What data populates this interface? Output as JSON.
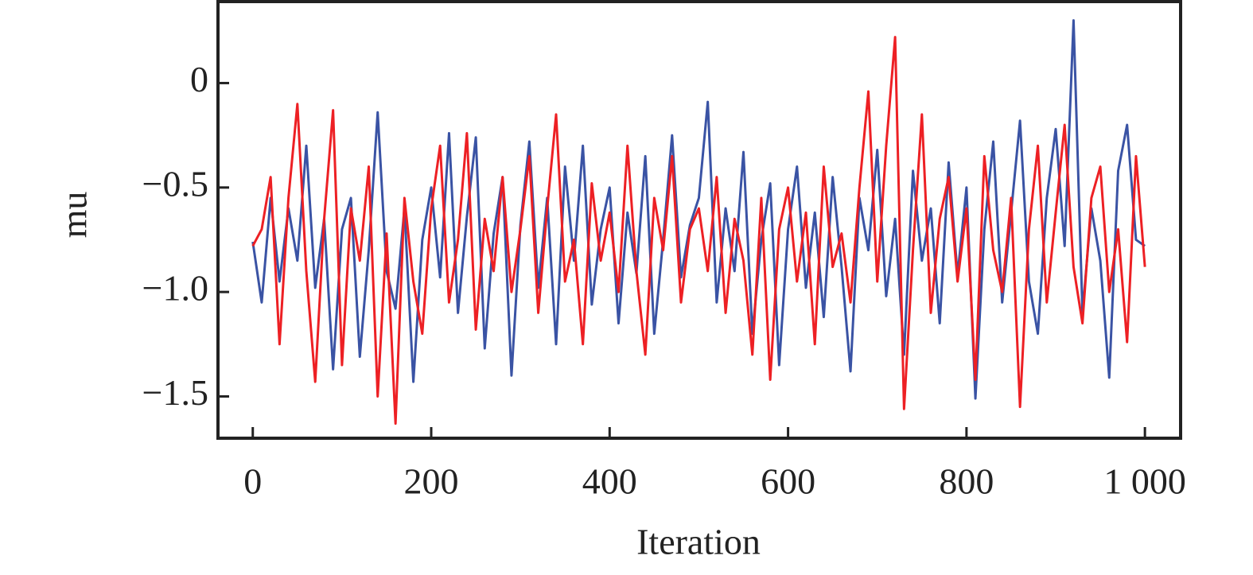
{
  "chart_data": {
    "type": "line",
    "xlabel": "Iteration",
    "ylabel": "mu",
    "x": [
      0,
      10,
      20,
      30,
      40,
      50,
      60,
      70,
      80,
      90,
      100,
      110,
      120,
      130,
      140,
      150,
      160,
      170,
      180,
      190,
      200,
      210,
      220,
      230,
      240,
      250,
      260,
      270,
      280,
      290,
      300,
      310,
      320,
      330,
      340,
      350,
      360,
      370,
      380,
      390,
      400,
      410,
      420,
      430,
      440,
      450,
      460,
      470,
      480,
      490,
      500,
      510,
      520,
      530,
      540,
      550,
      560,
      570,
      580,
      590,
      600,
      610,
      620,
      630,
      640,
      650,
      660,
      670,
      680,
      690,
      700,
      710,
      720,
      730,
      740,
      750,
      760,
      770,
      780,
      790,
      800,
      810,
      820,
      830,
      840,
      850,
      860,
      870,
      880,
      890,
      900,
      910,
      920,
      930,
      940,
      950,
      960,
      970,
      980,
      990,
      1000
    ],
    "series": [
      {
        "color": "#3a53a4",
        "values": [
          -0.76,
          -1.05,
          -0.55,
          -0.95,
          -0.6,
          -0.85,
          -0.3,
          -0.98,
          -0.65,
          -1.37,
          -0.7,
          -0.55,
          -1.31,
          -0.8,
          -0.14,
          -0.9,
          -1.08,
          -0.6,
          -1.43,
          -0.75,
          -0.5,
          -0.93,
          -0.24,
          -1.1,
          -0.64,
          -0.26,
          -1.27,
          -0.72,
          -0.45,
          -1.4,
          -0.68,
          -0.28,
          -0.98,
          -0.55,
          -1.25,
          -0.4,
          -0.85,
          -0.3,
          -1.06,
          -0.7,
          -0.5,
          -1.15,
          -0.62,
          -0.91,
          -0.35,
          -1.2,
          -0.75,
          -0.25,
          -0.93,
          -0.68,
          -0.55,
          -0.09,
          -1.05,
          -0.6,
          -0.9,
          -0.33,
          -1.2,
          -0.75,
          -0.48,
          -1.35,
          -0.7,
          -0.4,
          -0.98,
          -0.62,
          -1.12,
          -0.45,
          -0.88,
          -1.38,
          -0.55,
          -0.8,
          -0.32,
          -1.02,
          -0.65,
          -1.3,
          -0.42,
          -0.85,
          -0.6,
          -1.15,
          -0.38,
          -0.92,
          -0.5,
          -1.51,
          -0.7,
          -0.28,
          -1.05,
          -0.62,
          -0.18,
          -0.95,
          -1.2,
          -0.55,
          -0.22,
          -0.78,
          0.3,
          -1.1,
          -0.6,
          -0.85,
          -1.41,
          -0.42,
          -0.2,
          -0.75,
          -0.78
        ]
      },
      {
        "color": "#ed2024",
        "values": [
          -0.78,
          -0.7,
          -0.45,
          -1.25,
          -0.55,
          -0.1,
          -0.9,
          -1.43,
          -0.65,
          -0.13,
          -1.35,
          -0.6,
          -0.85,
          -0.4,
          -1.5,
          -0.72,
          -1.63,
          -0.55,
          -0.95,
          -1.2,
          -0.6,
          -0.3,
          -1.05,
          -0.75,
          -0.24,
          -1.18,
          -0.65,
          -0.9,
          -0.45,
          -1.0,
          -0.7,
          -0.35,
          -1.1,
          -0.6,
          -0.15,
          -0.95,
          -0.75,
          -1.25,
          -0.48,
          -0.85,
          -0.62,
          -1.0,
          -0.3,
          -0.9,
          -1.3,
          -0.55,
          -0.8,
          -0.35,
          -1.05,
          -0.7,
          -0.6,
          -0.9,
          -0.45,
          -1.1,
          -0.65,
          -0.85,
          -1.3,
          -0.55,
          -1.42,
          -0.7,
          -0.5,
          -0.95,
          -0.62,
          -1.25,
          -0.4,
          -0.88,
          -0.72,
          -1.05,
          -0.5,
          -0.04,
          -0.95,
          -0.3,
          0.22,
          -1.56,
          -0.8,
          -0.15,
          -1.1,
          -0.65,
          -0.45,
          -0.95,
          -0.6,
          -1.42,
          -0.35,
          -0.8,
          -1.0,
          -0.55,
          -1.55,
          -0.7,
          -0.3,
          -1.05,
          -0.62,
          -0.2,
          -0.88,
          -1.15,
          -0.55,
          -0.4,
          -1.0,
          -0.7,
          -1.24,
          -0.35,
          -0.88
        ]
      }
    ],
    "xlim": [
      -39,
      1040
    ],
    "ylim": [
      -1.7,
      0.39
    ],
    "xticks": [
      0,
      200,
      400,
      600,
      800,
      {
        "value": 1000,
        "label": "1 000"
      }
    ],
    "yticks": [
      {
        "value": -1.5,
        "label": "−1.5"
      },
      {
        "value": -1.0,
        "label": "−1.0"
      },
      {
        "value": -0.5,
        "label": "−0.5"
      },
      0
    ]
  }
}
